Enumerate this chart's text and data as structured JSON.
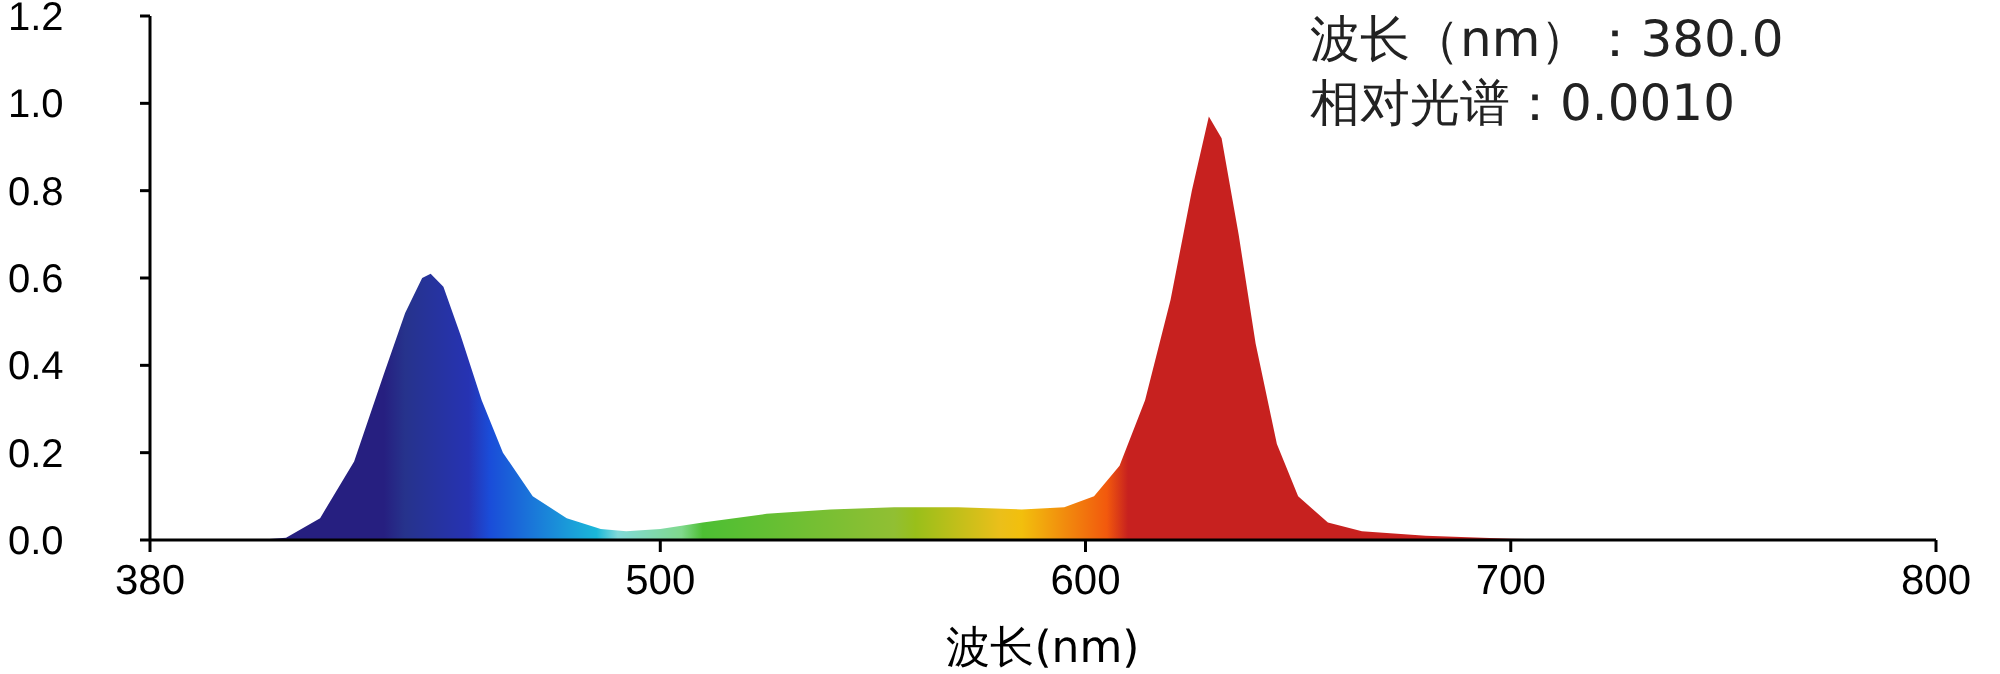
{
  "chart_data": {
    "type": "area",
    "xlabel": "波长(nm)",
    "annotations": [
      "波长（nm）：380.0",
      "相对光谱：0.0010"
    ],
    "xlim": [
      380,
      800
    ],
    "ylim": [
      0,
      1.2
    ],
    "xticks": [
      380,
      500,
      600,
      700,
      800
    ],
    "yticks": [
      {
        "value": 0,
        "label": "0.0"
      },
      {
        "value": 0.2,
        "label": "0.2"
      },
      {
        "value": 0.4,
        "label": "0.4"
      },
      {
        "value": 0.6,
        "label": "0.6"
      },
      {
        "value": 0.8,
        "label": "0.8"
      },
      {
        "value": 1,
        "label": "1.0"
      },
      {
        "value": 1.2,
        "label": "1.2"
      }
    ],
    "x": [
      380,
      405,
      412,
      420,
      428,
      435,
      440,
      444,
      446,
      449,
      453,
      458,
      463,
      470,
      478,
      486,
      492,
      500,
      510,
      525,
      540,
      555,
      570,
      585,
      595,
      602,
      608,
      614,
      620,
      625,
      629,
      632,
      636,
      640,
      645,
      650,
      657,
      665,
      680,
      700,
      720,
      800
    ],
    "values": [
      0,
      0,
      0.005,
      0.05,
      0.18,
      0.38,
      0.52,
      0.6,
      0.61,
      0.58,
      0.47,
      0.32,
      0.2,
      0.1,
      0.05,
      0.025,
      0.02,
      0.025,
      0.04,
      0.06,
      0.07,
      0.075,
      0.075,
      0.07,
      0.075,
      0.1,
      0.17,
      0.32,
      0.55,
      0.8,
      0.97,
      0.92,
      0.7,
      0.45,
      0.22,
      0.1,
      0.04,
      0.02,
      0.01,
      0.003,
      0,
      0
    ]
  }
}
